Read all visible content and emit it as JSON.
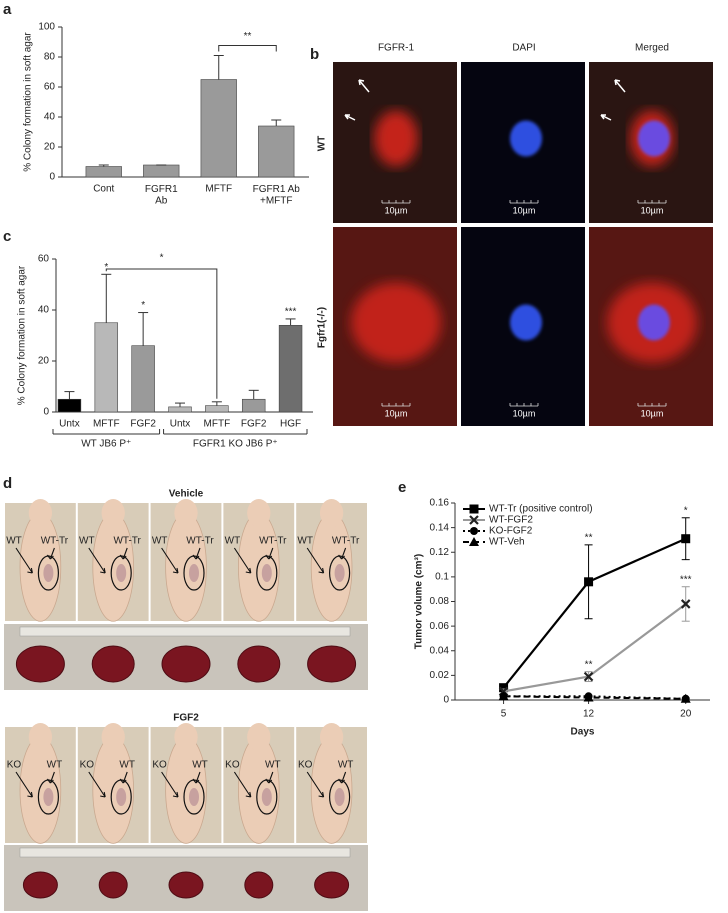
{
  "figure": {
    "panel_labels": [
      "a",
      "b",
      "c",
      "d",
      "e"
    ],
    "b": {
      "columns": [
        "FGFR-1",
        "DAPI",
        "Merged"
      ],
      "rows": [
        "WT",
        "Fgfr1(-/-)"
      ],
      "scale_bars": [
        "10µm",
        "10µm",
        "10µm",
        "10µm",
        "10µm",
        "10µm"
      ]
    },
    "d": {
      "groups": [
        {
          "title": "Vehicle",
          "mouse_labels": [
            [
              "WT",
              "WT-Tr"
            ],
            [
              "WT",
              "WT-Tr"
            ],
            [
              "WT",
              "WT-Tr"
            ],
            [
              "WT",
              "WT-Tr"
            ],
            [
              "WT",
              "WT-Tr"
            ]
          ]
        },
        {
          "title": "FGF2",
          "mouse_labels": [
            [
              "KO",
              "WT"
            ],
            [
              "KO",
              "WT"
            ],
            [
              "KO",
              "WT"
            ],
            [
              "KO",
              "WT"
            ],
            [
              "KO",
              "WT"
            ]
          ]
        }
      ]
    }
  },
  "chart_data": [
    {
      "type": "bar",
      "ylabel": "% Colony formation in soft agar",
      "categories": [
        "Cont",
        "FGFR1\nAb",
        "MFTF",
        "FGFR1 Ab\n+MFTF"
      ],
      "values": [
        7,
        8,
        65,
        34
      ],
      "errors": [
        1,
        0,
        16,
        4
      ],
      "color": "#9a9a9a",
      "ylim": [
        0,
        100
      ],
      "yticks": [
        0,
        20,
        40,
        60,
        80,
        100
      ],
      "brackets": [
        {
          "from": 2,
          "to": 3,
          "text": "**"
        }
      ]
    },
    {
      "type": "bar",
      "ylabel": "% Colony formation in soft agar",
      "categories": [
        "Untx",
        "MFTF",
        "FGF2",
        "Untx",
        "MFTF",
        "FGF2",
        "HGF"
      ],
      "values": [
        5,
        35,
        26,
        2,
        2.5,
        5,
        34
      ],
      "errors": [
        3,
        19,
        13,
        1.5,
        1.5,
        3.5,
        2.5
      ],
      "colors": [
        "#000000",
        "#b8b8b8",
        "#9a9a9a",
        "#b8b8b8",
        "#b8b8b8",
        "#9a9a9a",
        "#6e6e6e"
      ],
      "label_colors": [
        "#222222",
        "#d02020",
        "#222222",
        "#222222",
        "#d02020",
        "#222222",
        "#222222"
      ],
      "ylim": [
        0,
        60
      ],
      "yticks": [
        0,
        20,
        40,
        60
      ],
      "stars": [
        null,
        "*",
        "*",
        null,
        null,
        null,
        "***"
      ],
      "groups": [
        {
          "name": "WT JB6 P⁺",
          "from": 0,
          "to": 2
        },
        {
          "name": "FGFR1 KO JB6 P⁺",
          "from": 3,
          "to": 6
        }
      ],
      "brackets": [
        {
          "from": 1,
          "to": 4,
          "text": "*"
        }
      ]
    },
    {
      "type": "line",
      "ylabel": "Tumor volume (cm³)",
      "xlabel": "Days",
      "x": [
        5,
        12,
        20
      ],
      "xlim": [
        1,
        22
      ],
      "xticks": [
        5,
        12,
        20
      ],
      "ylim": [
        0,
        0.16
      ],
      "yticks": [
        0,
        0.02,
        0.04,
        0.06,
        0.08,
        0.1,
        0.12,
        0.14,
        0.16
      ],
      "legend": "top-left",
      "series": [
        {
          "name": "WT-Tr (positive control)",
          "color": "#000000",
          "marker": "square",
          "dash": "solid",
          "values": [
            0.01,
            0.096,
            0.131
          ],
          "errors": [
            0.003,
            0.03,
            0.017
          ],
          "stars": [
            null,
            "**",
            "*"
          ]
        },
        {
          "name": "WT-FGF2",
          "color": "#999999",
          "marker": "x",
          "dash": "solid",
          "values": [
            0.007,
            0.019,
            0.078
          ],
          "errors": [
            0.002,
            0.004,
            0.014
          ],
          "stars": [
            null,
            "**",
            "***"
          ]
        },
        {
          "name": "KO-FGF2",
          "color": "#000000",
          "marker": "circle",
          "dash": "dotted",
          "values": [
            0.003,
            0.003,
            0.001
          ]
        },
        {
          "name": "WT-Veh",
          "color": "#000000",
          "marker": "triangle",
          "dash": "dashed",
          "values": [
            0.003,
            0.002,
            0.001
          ]
        }
      ]
    }
  ]
}
